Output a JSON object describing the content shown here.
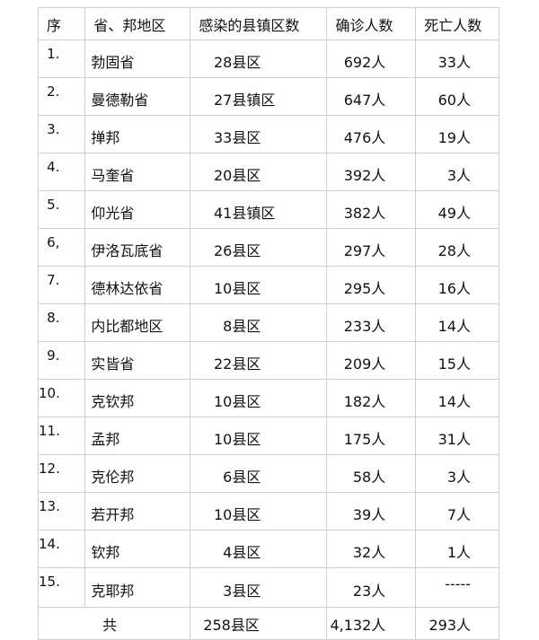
{
  "headers": [
    "序",
    "省、邦地区",
    "感染的县镇区数",
    "确诊人数",
    "死亡人数"
  ],
  "rows": [
    {
      "seq": "1.",
      "region": "勃固省",
      "count_num": "28",
      "count_unit": "县区",
      "confirmed": "692人",
      "deaths": "33人"
    },
    {
      "seq": "2.",
      "region": "曼德勒省",
      "count_num": "27",
      "count_unit": "县镇区",
      "confirmed": "647人",
      "deaths": "60人"
    },
    {
      "seq": "3.",
      "region": "掸邦",
      "count_num": "33",
      "count_unit": "县区",
      "confirmed": "476人",
      "deaths": "19人"
    },
    {
      "seq": "4.",
      "region": "马奎省",
      "count_num": "20",
      "count_unit": "县区",
      "confirmed": "392人",
      "deaths": "3人"
    },
    {
      "seq": "5.",
      "region": "仰光省",
      "count_num": "41",
      "count_unit": "县镇区",
      "confirmed": "382人",
      "deaths": "49人"
    },
    {
      "seq": "6,",
      "region": "伊洛瓦底省",
      "count_num": "26",
      "count_unit": "县区",
      "confirmed": "297人",
      "deaths": "28人"
    },
    {
      "seq": "7.",
      "region": "德林达依省",
      "count_num": "10",
      "count_unit": "县区",
      "confirmed": "295人",
      "deaths": "16人"
    },
    {
      "seq": "8.",
      "region": "内比都地区",
      "count_num": "8",
      "count_unit": "县区",
      "confirmed": "233人",
      "deaths": "14人"
    },
    {
      "seq": "9.",
      "region": "实皆省",
      "count_num": "22",
      "count_unit": "县区",
      "confirmed": "209人",
      "deaths": "15人"
    },
    {
      "seq": "10.",
      "region": "克钦邦",
      "count_num": "10",
      "count_unit": "县区",
      "confirmed": "182人",
      "deaths": "14人"
    },
    {
      "seq": "11.",
      "region": "孟邦",
      "count_num": "10",
      "count_unit": "县区",
      "confirmed": "175人",
      "deaths": "31人"
    },
    {
      "seq": "12.",
      "region": "克伦邦",
      "count_num": "6",
      "count_unit": "县区",
      "confirmed": "58人",
      "deaths": "3人"
    },
    {
      "seq": "13.",
      "region": "若开邦",
      "count_num": "10",
      "count_unit": "县区",
      "confirmed": "39人",
      "deaths": "7人"
    },
    {
      "seq": "14.",
      "region": "钦邦",
      "count_num": "4",
      "count_unit": "县区",
      "confirmed": "32人",
      "deaths": "1人"
    },
    {
      "seq": "15.",
      "region": "克耶邦",
      "count_num": "3",
      "count_unit": "县区",
      "confirmed": "23人",
      "deaths": "-----"
    }
  ],
  "total": {
    "label": "共",
    "count": "258县区",
    "confirmed": "4,132人",
    "deaths": "293人"
  }
}
